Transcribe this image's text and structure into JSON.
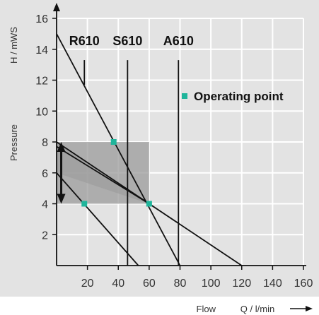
{
  "colors": {
    "background": "#e3e3e3",
    "grid": "#ffffff",
    "line": "#111111",
    "shade": "#9b9b9b",
    "point": "#1fb59b"
  },
  "chart_data": {
    "type": "line",
    "xlim": [
      0,
      160
    ],
    "ylim": [
      0,
      16
    ],
    "x_ticks": [
      "20",
      "40",
      "60",
      "80",
      "100",
      "120",
      "140",
      "160"
    ],
    "y_ticks": [
      "2",
      "4",
      "6",
      "8",
      "10",
      "12",
      "14",
      "16"
    ],
    "x_axis_note": {
      "left": "Flow",
      "right": "Q / l/min"
    },
    "y_axis_note": {
      "unit": "H / mWS",
      "title": "Pressure"
    },
    "grid": true,
    "series": [
      {
        "name": "R610",
        "x": [
          0,
          53
        ],
        "y": [
          6,
          0
        ],
        "model_line": {
          "x": 18,
          "y_from": 11.7,
          "y_to": 13.3
        }
      },
      {
        "name": "S610",
        "x": [
          0,
          80
        ],
        "y": [
          15,
          0
        ],
        "model_line": {
          "x": 46,
          "y_from": 0,
          "y_to": 13.3
        }
      },
      {
        "name": "A610",
        "x": [
          0,
          120
        ],
        "y": [
          8,
          0
        ],
        "model_line": {
          "x": 79,
          "y_from": 0,
          "y_to": 13.3
        }
      },
      {
        "name": "",
        "x": [
          0,
          60
        ],
        "y": [
          7.7,
          4
        ]
      }
    ],
    "shaded_region": {
      "x": [
        0,
        60
      ],
      "y": [
        4,
        8
      ]
    },
    "triangle_region": {
      "points": [
        [
          0,
          8
        ],
        [
          0,
          6
        ],
        [
          60,
          4
        ]
      ]
    },
    "arrow": {
      "x": 3,
      "y_from": 4,
      "y_to": 8
    },
    "operating_points": [
      {
        "x": 18,
        "y": 4
      },
      {
        "x": 37,
        "y": 8
      },
      {
        "x": 60,
        "y": 4
      }
    ],
    "legend": {
      "label": "Operating point",
      "placement": "right"
    }
  }
}
